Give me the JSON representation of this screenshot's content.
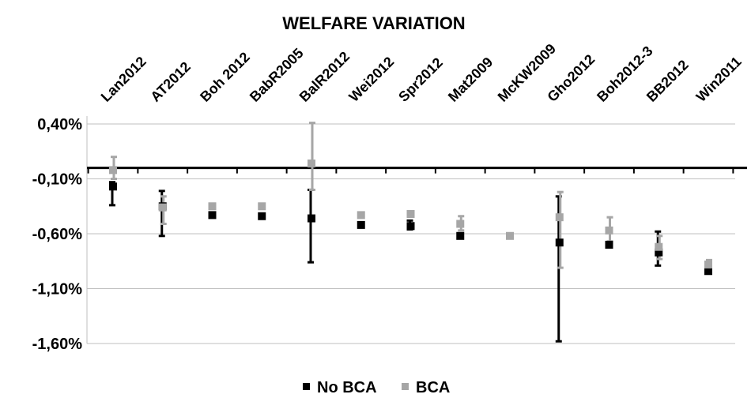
{
  "chart_data": {
    "type": "scatter",
    "title": "WELFARE VARIATION",
    "categories": [
      "Lan2012",
      "AT2012",
      "Boh 2012",
      "BabR2005",
      "BalR2012",
      "Wei2012",
      "Spr2012",
      "Mat2009",
      "McKW2009",
      "Gho2012",
      "Boh2012-3",
      "BB2012",
      "Win2011"
    ],
    "y_ticks": [
      "0,40%",
      "-0,10%",
      "-0,60%",
      "-1,10%",
      "-1,60%"
    ],
    "y_tick_values": [
      0.4,
      -0.1,
      -0.6,
      -1.1,
      -1.6
    ],
    "ylim": [
      -1.6,
      0.4
    ],
    "xaxis_at": 0.0,
    "grid": true,
    "legend_position": "bottom",
    "series": [
      {
        "name": "No BCA",
        "color": "#000000",
        "values": [
          -0.17,
          -0.35,
          -0.43,
          -0.44,
          -0.46,
          -0.52,
          -0.53,
          -0.62,
          null,
          -0.68,
          -0.7,
          -0.77,
          -0.94
        ],
        "err_low": [
          -0.34,
          -0.62,
          null,
          null,
          -0.86,
          null,
          -0.56,
          null,
          null,
          -1.58,
          null,
          -0.89,
          null
        ],
        "err_high": [
          -0.13,
          -0.21,
          null,
          null,
          -0.2,
          null,
          -0.48,
          null,
          null,
          -0.26,
          null,
          -0.58,
          null
        ]
      },
      {
        "name": "BCA",
        "color": "#a6a6a6",
        "values": [
          -0.02,
          -0.36,
          -0.35,
          -0.35,
          0.04,
          -0.43,
          -0.42,
          -0.51,
          -0.62,
          -0.45,
          -0.57,
          -0.72,
          -0.88
        ],
        "err_low": [
          -0.1,
          -0.51,
          null,
          null,
          -0.2,
          null,
          null,
          -0.57,
          null,
          -0.91,
          -0.67,
          -0.83,
          -0.92
        ],
        "err_high": [
          0.1,
          -0.26,
          null,
          null,
          0.41,
          null,
          null,
          -0.44,
          null,
          -0.22,
          -0.45,
          -0.62,
          -0.84
        ]
      }
    ]
  }
}
